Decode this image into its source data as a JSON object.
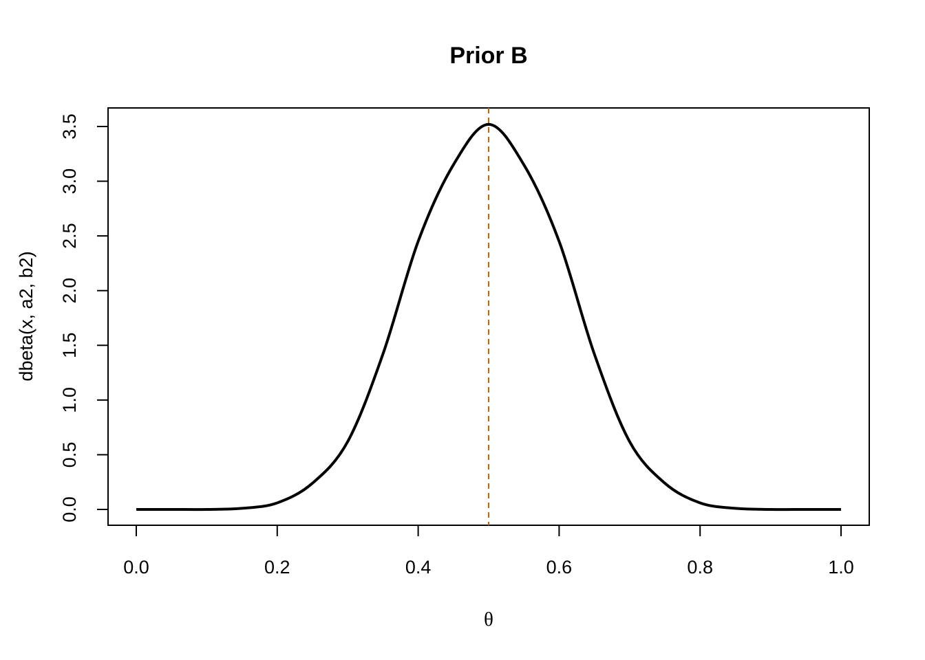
{
  "chart_data": {
    "type": "line",
    "title": "Prior B",
    "xlabel": "θ",
    "ylabel": "dbeta(x, a2, b2)",
    "xlim": [
      0,
      1
    ],
    "ylim": [
      0,
      3.5
    ],
    "x_ticks": [
      0.0,
      0.2,
      0.4,
      0.6,
      0.8,
      1.0
    ],
    "x_tick_labels": [
      "0.0",
      "0.2",
      "0.4",
      "0.6",
      "0.8",
      "1.0"
    ],
    "y_ticks": [
      0.0,
      0.5,
      1.0,
      1.5,
      2.0,
      2.5,
      3.0,
      3.5
    ],
    "y_tick_labels": [
      "0.0",
      "0.5",
      "1.0",
      "1.5",
      "2.0",
      "2.5",
      "3.0",
      "3.5"
    ],
    "grid": false,
    "series": [
      {
        "color": "#000000",
        "x": [
          0.0,
          0.05,
          0.1,
          0.15,
          0.2,
          0.25,
          0.3,
          0.35,
          0.4,
          0.45,
          0.5,
          0.55,
          0.6,
          0.65,
          0.7,
          0.75,
          0.8,
          0.85,
          0.9,
          0.95,
          1.0
        ],
        "y": [
          0.0,
          0.0,
          0.0,
          0.01,
          0.06,
          0.24,
          0.62,
          1.42,
          2.45,
          3.15,
          3.52,
          3.15,
          2.45,
          1.42,
          0.62,
          0.24,
          0.06,
          0.01,
          0.0,
          0.0,
          0.0
        ]
      }
    ],
    "vline": {
      "x": 0.5,
      "color": "#c8640a",
      "style": "dashed"
    }
  }
}
